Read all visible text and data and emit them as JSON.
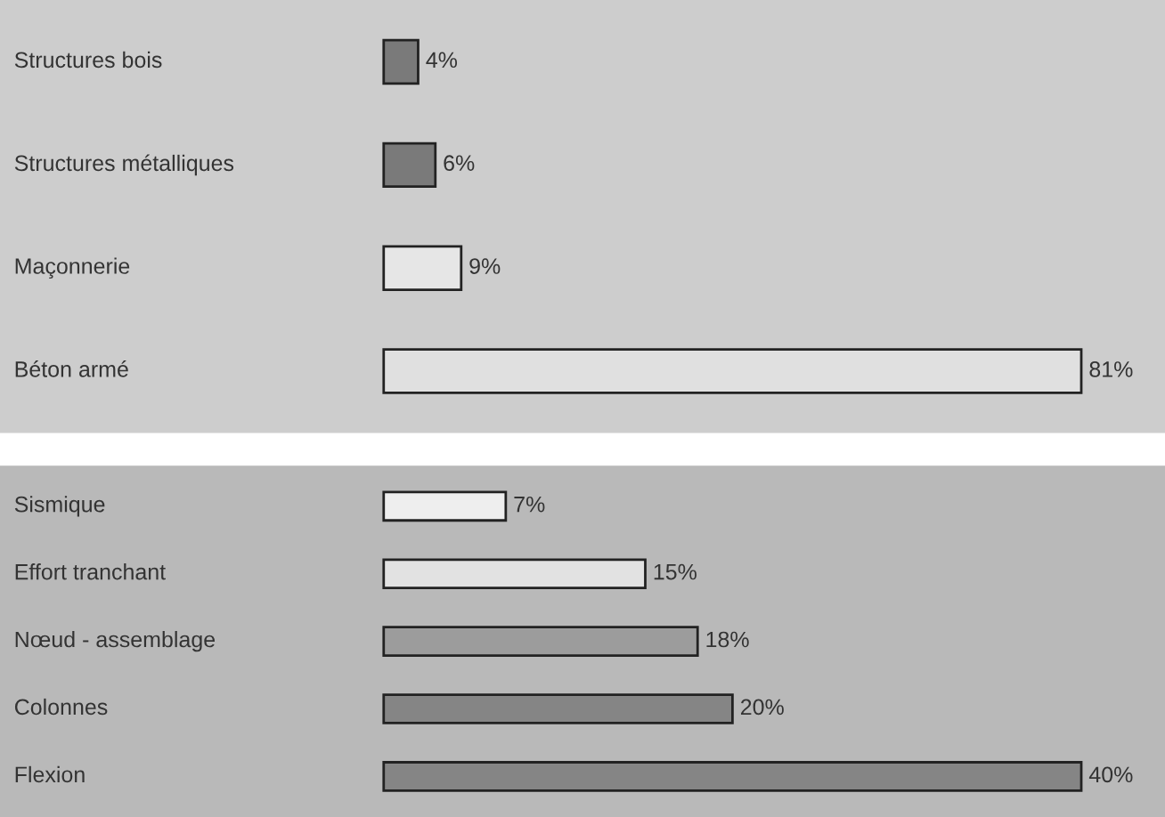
{
  "chart_data": [
    {
      "type": "bar",
      "orientation": "horizontal",
      "categories": [
        "Structures bois",
        "Structures métalliques",
        "Maçonnerie",
        "Béton armé"
      ],
      "values": [
        4,
        6,
        9,
        81
      ],
      "colors": [
        "#7a7a7a",
        "#7a7a7a",
        "#e6e6e6",
        "#e0e0e0"
      ],
      "value_labels": [
        "4%",
        "6%",
        "9%",
        "81%"
      ]
    },
    {
      "type": "bar",
      "orientation": "horizontal",
      "categories": [
        "Sismique",
        "Effort tranchant",
        "Nœud - assemblage",
        "Colonnes",
        "Flexion"
      ],
      "values": [
        7,
        15,
        18,
        20,
        40
      ],
      "colors": [
        "#eeeeee",
        "#e2e2e2",
        "#9c9c9c",
        "#858585",
        "#858585"
      ],
      "value_labels": [
        "7%",
        "15%",
        "18%",
        "20%",
        "40%"
      ]
    }
  ]
}
